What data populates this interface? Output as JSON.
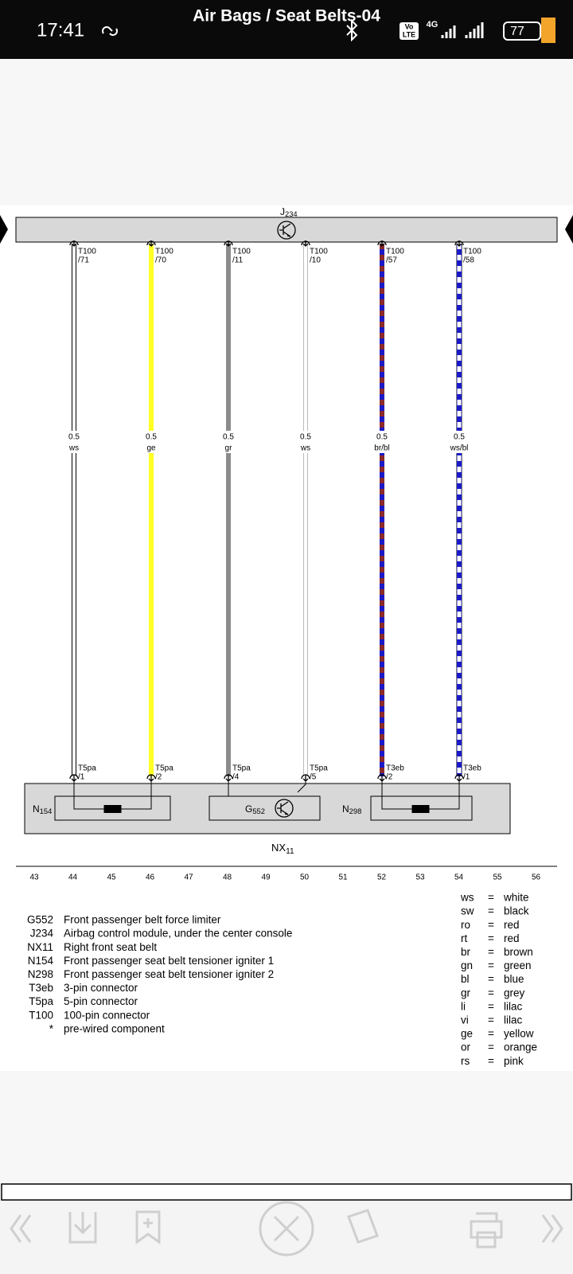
{
  "status_bar": {
    "time": "17:41",
    "title": "Air Bags / Seat Belts-04",
    "network": "4G",
    "volte_top": "Vo",
    "volte_bottom": "LTE",
    "battery": "77"
  },
  "diagram": {
    "control_module": {
      "name": "J",
      "sub": "234"
    },
    "wires": [
      {
        "top_connector": "T100",
        "top_pin": "/71",
        "size": "0.5",
        "color": "ws",
        "bottom_connector": "T5pa",
        "bottom_pin": "/1"
      },
      {
        "top_connector": "T100",
        "top_pin": "/70",
        "size": "0.5",
        "color": "ge",
        "bottom_connector": "T5pa",
        "bottom_pin": "/2"
      },
      {
        "top_connector": "T100",
        "top_pin": "/11",
        "size": "0.5",
        "color": "gr",
        "bottom_connector": "T5pa",
        "bottom_pin": "/4"
      },
      {
        "top_connector": "T100",
        "top_pin": "/10",
        "size": "0.5",
        "color": "ws",
        "bottom_connector": "T5pa",
        "bottom_pin": "/5"
      },
      {
        "top_connector": "T100",
        "top_pin": "/57",
        "size": "0.5",
        "color": "br/bl",
        "bottom_connector": "T3eb",
        "bottom_pin": "/2"
      },
      {
        "top_connector": "T100",
        "top_pin": "/58",
        "size": "0.5",
        "color": "ws/bl",
        "bottom_connector": "T3eb",
        "bottom_pin": "/1"
      }
    ],
    "components": [
      {
        "name": "N",
        "sub": "154"
      },
      {
        "name": "G",
        "sub": "552"
      },
      {
        "name": "N",
        "sub": "298"
      }
    ],
    "housing": {
      "name": "NX",
      "sub": "11"
    },
    "columns": [
      "43",
      "44",
      "45",
      "46",
      "47",
      "48",
      "49",
      "50",
      "51",
      "52",
      "53",
      "54",
      "55",
      "56"
    ]
  },
  "legend": {
    "components": [
      {
        "code": "G552",
        "description": "Front passenger belt force limiter"
      },
      {
        "code": "J234",
        "description": "Airbag control module, under the center console"
      },
      {
        "code": "NX11",
        "description": "Right front seat belt"
      },
      {
        "code": "N154",
        "description": "Front passenger seat belt tensioner igniter 1"
      },
      {
        "code": "N298",
        "description": "Front passenger seat belt tensioner igniter 2"
      },
      {
        "code": "T3eb",
        "description": "3-pin connector"
      },
      {
        "code": "T5pa",
        "description": "5-pin connector"
      },
      {
        "code": "T100",
        "description": "100-pin connector"
      },
      {
        "code": "*",
        "description": "pre-wired component"
      }
    ],
    "equals": "=",
    "colors": [
      {
        "code": "ws",
        "name": "white"
      },
      {
        "code": "sw",
        "name": "black"
      },
      {
        "code": "ro",
        "name": "red"
      },
      {
        "code": "rt",
        "name": "red"
      },
      {
        "code": "br",
        "name": "brown"
      },
      {
        "code": "gn",
        "name": "green"
      },
      {
        "code": "bl",
        "name": "blue"
      },
      {
        "code": "gr",
        "name": "grey"
      },
      {
        "code": "li",
        "name": "lilac"
      },
      {
        "code": "vi",
        "name": "lilac"
      },
      {
        "code": "ge",
        "name": "yellow"
      },
      {
        "code": "or",
        "name": "orange"
      },
      {
        "code": "rs",
        "name": "pink"
      }
    ]
  }
}
